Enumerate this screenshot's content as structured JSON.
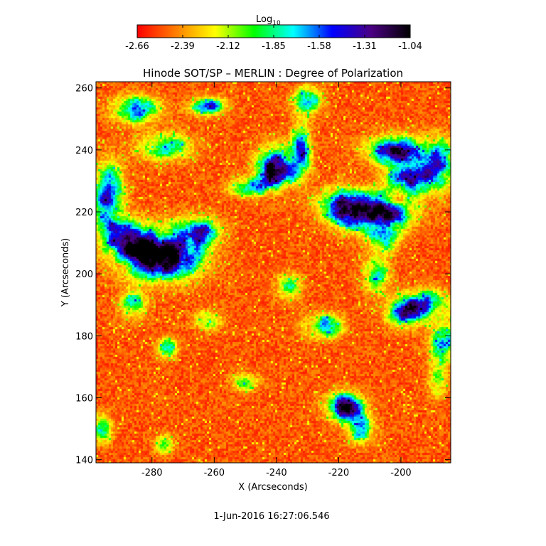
{
  "chart_data": {
    "type": "heatmap",
    "title": "Hinode SOT/SP – MERLIN : Degree of Polarization",
    "xlabel": "X (Arcseconds)",
    "ylabel": "Y (Arcseconds)",
    "xlim": [
      -298,
      -184
    ],
    "ylim": [
      139,
      262
    ],
    "x_ticks": [
      -280,
      -260,
      -240,
      -220,
      -200
    ],
    "y_ticks": [
      140,
      160,
      180,
      200,
      220,
      240,
      260
    ],
    "grid": false,
    "colorbar": {
      "title_base": "Log",
      "title_sub": "10",
      "placement": "top",
      "range": [
        -2.66,
        -1.04
      ],
      "ticks": [
        "-2.66",
        "-2.39",
        "-2.12",
        "-1.85",
        "-1.58",
        "-1.31",
        "-1.04"
      ],
      "colors": [
        "#ff0000",
        "#ff7f00",
        "#ffff00",
        "#00ff00",
        "#00ffff",
        "#0000ff",
        "#4b0082",
        "#000000"
      ]
    },
    "background_color": "#ff2a00",
    "clusters": [
      {
        "x": -277,
        "y": 206,
        "sx": 8,
        "sy": 5,
        "amp": 1.5
      },
      {
        "x": -287,
        "y": 211,
        "sx": 5,
        "sy": 4,
        "amp": 1.1
      },
      {
        "x": -294,
        "y": 224,
        "sx": 3,
        "sy": 7,
        "amp": 1.2
      },
      {
        "x": -266,
        "y": 214,
        "sx": 5,
        "sy": 3,
        "amp": 0.9
      },
      {
        "x": -240,
        "y": 235,
        "sx": 4,
        "sy": 4,
        "amp": 1.4
      },
      {
        "x": -248,
        "y": 228,
        "sx": 5,
        "sy": 2,
        "amp": 0.7
      },
      {
        "x": -232,
        "y": 240,
        "sx": 2,
        "sy": 6,
        "amp": 0.9
      },
      {
        "x": -209,
        "y": 220,
        "sx": 8,
        "sy": 4,
        "amp": 1.4
      },
      {
        "x": -220,
        "y": 223,
        "sx": 4,
        "sy": 3,
        "amp": 1.0
      },
      {
        "x": -196,
        "y": 231,
        "sx": 5,
        "sy": 3,
        "amp": 1.1
      },
      {
        "x": -188,
        "y": 236,
        "sx": 3,
        "sy": 5,
        "amp": 1.0
      },
      {
        "x": -202,
        "y": 240,
        "sx": 6,
        "sy": 3,
        "amp": 1.1
      },
      {
        "x": -205,
        "y": 212,
        "sx": 3,
        "sy": 3,
        "amp": 0.8
      },
      {
        "x": -192,
        "y": 190,
        "sx": 5,
        "sy": 3,
        "amp": 1.0
      },
      {
        "x": -199,
        "y": 187,
        "sx": 4,
        "sy": 3,
        "amp": 0.8
      },
      {
        "x": -186,
        "y": 177,
        "sx": 3,
        "sy": 4,
        "amp": 0.9
      },
      {
        "x": -225,
        "y": 183,
        "sx": 4,
        "sy": 2.5,
        "amp": 0.9
      },
      {
        "x": -218,
        "y": 157,
        "sx": 4,
        "sy": 3,
        "amp": 1.1
      },
      {
        "x": -285,
        "y": 253,
        "sx": 5,
        "sy": 3,
        "amp": 0.8
      },
      {
        "x": -262,
        "y": 254,
        "sx": 4,
        "sy": 2,
        "amp": 0.7
      },
      {
        "x": -276,
        "y": 241,
        "sx": 6,
        "sy": 3,
        "amp": 0.6
      },
      {
        "x": -275,
        "y": 176,
        "sx": 2,
        "sy": 2,
        "amp": 0.8
      },
      {
        "x": -262,
        "y": 185,
        "sx": 3,
        "sy": 2,
        "amp": 0.6
      },
      {
        "x": -286,
        "y": 190,
        "sx": 3,
        "sy": 3,
        "amp": 0.6
      },
      {
        "x": -230,
        "y": 256,
        "sx": 3,
        "sy": 3,
        "amp": 0.7
      },
      {
        "x": -208,
        "y": 200,
        "sx": 3,
        "sy": 4,
        "amp": 0.6
      },
      {
        "x": -250,
        "y": 165,
        "sx": 3,
        "sy": 2,
        "amp": 0.5
      },
      {
        "x": -276,
        "y": 145,
        "sx": 2,
        "sy": 2,
        "amp": 0.6
      },
      {
        "x": -296,
        "y": 150,
        "sx": 2,
        "sy": 3,
        "amp": 0.6
      },
      {
        "x": -213,
        "y": 150,
        "sx": 3,
        "sy": 3,
        "amp": 0.6
      },
      {
        "x": -188,
        "y": 165,
        "sx": 2,
        "sy": 3,
        "amp": 0.6
      },
      {
        "x": -236,
        "y": 196,
        "sx": 3,
        "sy": 3,
        "amp": 0.5
      }
    ]
  },
  "footer": {
    "timestamp": "1-Jun-2016 16:27:06.546"
  }
}
